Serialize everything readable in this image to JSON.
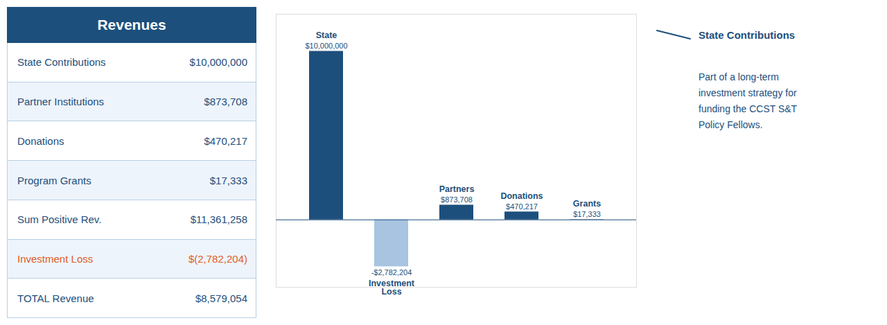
{
  "chart_data": [
    {
      "type": "table",
      "title": "Revenues",
      "categories": [
        "State Contributions",
        "Partner Institutions",
        "Donations",
        "Program Grants",
        "Sum Positive Rev.",
        "Investment Loss",
        "TOTAL Revenue"
      ],
      "values": [
        10000000,
        873708,
        470217,
        17333,
        11361258,
        -2782204,
        8579054
      ],
      "value_labels": [
        "$10,000,000",
        "$873,708",
        "$470,217",
        "$17,333",
        "$11,361,258",
        "$(2,782,204)",
        "$8,579,054"
      ],
      "colors": [
        "#1d4f7c",
        "#1d4f7c",
        "#1d4f7c",
        "#1d4f7c",
        "#1d4f7c",
        "#e05c2a",
        "#1d4f7c"
      ]
    },
    {
      "type": "bar",
      "categories": [
        "State",
        "Investment\nLoss",
        "Partners",
        "Donations",
        "Grants"
      ],
      "values": [
        10000000,
        -2782204,
        873708,
        470217,
        17333
      ],
      "value_labels": [
        "$10,000,000",
        "-$2,782,204",
        "$873,708",
        "$470,217",
        "$17,333"
      ],
      "colors": [
        "#1d4f7c",
        "#a8c4e0",
        "#1d4f7c",
        "#1d4f7c",
        "#1d4f7c"
      ],
      "ylim": [
        -4000000,
        12200000
      ],
      "yticks": [],
      "tick_labels": false,
      "data_labels": true,
      "annotations": [
        {
          "title": "State Contributions",
          "text": "Part of a long-term\ninvestment strategy for\nfunding the CCST S&T\nPolicy Fellows."
        }
      ]
    }
  ]
}
